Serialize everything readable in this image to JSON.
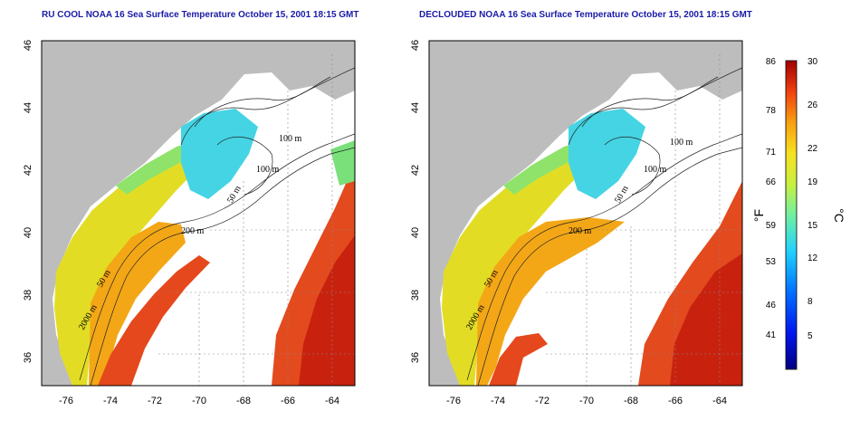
{
  "titles": {
    "left": "RU COOL NOAA 16 Sea Surface Temperature October 15, 2001 18:15 GMT",
    "right": "DECLOUDED NOAA 16 Sea Surface Temperature October 15, 2001 18:15 GMT"
  },
  "axes": {
    "lon_ticks": [
      "-76",
      "-74",
      "-72",
      "-70",
      "-68",
      "-66",
      "-64"
    ],
    "lat_ticks": [
      "36",
      "38",
      "40",
      "42",
      "44",
      "46"
    ]
  },
  "contour_labels_left": [
    "100 m",
    "100 m",
    "50 m",
    "200 m",
    "50 m",
    "2000 m"
  ],
  "contour_labels_right": [
    "100 m",
    "100 m",
    "50 m",
    "200 m",
    "50 m",
    "2000 m"
  ],
  "colorbar": {
    "fahrenheit": [
      "86",
      "78",
      "71",
      "66",
      "59",
      "53",
      "46",
      "41"
    ],
    "celsius": [
      "30",
      "26",
      "22",
      "19",
      "15",
      "12",
      "8",
      "5"
    ],
    "unit_f": "°F",
    "unit_c": "°C"
  },
  "colors": {
    "land": "#bdbdbd",
    "cloud": "#ffffff",
    "warm": "#e8431c",
    "hot": "#c81e10",
    "orange": "#f5a514",
    "yellow": "#e9e21c",
    "green": "#7fe06a",
    "cyan": "#3fd7e8",
    "title": "#1a1aa8"
  }
}
